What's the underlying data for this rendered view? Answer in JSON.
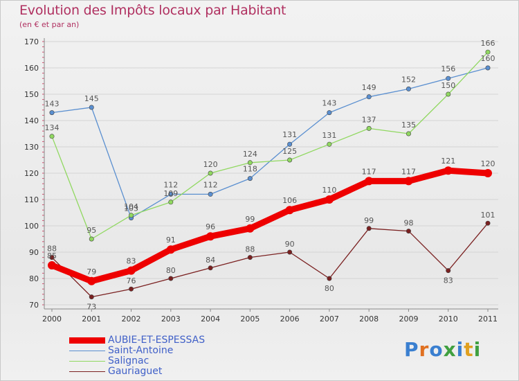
{
  "title": "Evolution des Impôts locaux par Habitant",
  "subtitle": "(en € et par an)",
  "logo_text": "Proxiti",
  "logo_colors": [
    "#3a7fd0",
    "#e07020",
    "#3a7fd0",
    "#40a040",
    "#3a7fd0",
    "#e0a020",
    "#40a040"
  ],
  "chart_data": {
    "type": "line",
    "x": [
      "2000",
      "2001",
      "2002",
      "2003",
      "2004",
      "2005",
      "2006",
      "2007",
      "2008",
      "2009",
      "2010",
      "2011"
    ],
    "ylim": [
      70,
      170
    ],
    "yticks": [
      70,
      80,
      90,
      100,
      110,
      120,
      130,
      140,
      150,
      160,
      170
    ],
    "grid": "horizontal",
    "legend_position": "bottom-left",
    "series": [
      {
        "name": "AUBIE-ET-ESPESSAS",
        "color": "#ee0000",
        "values": [
          85,
          79,
          83,
          91,
          96,
          99,
          106,
          110,
          117,
          117,
          121,
          120
        ]
      },
      {
        "name": "Saint-Antoine",
        "color": "#5a8fd0",
        "values": [
          143,
          145,
          103,
          112,
          112,
          118,
          131,
          143,
          149,
          152,
          156,
          160
        ]
      },
      {
        "name": "Salignac",
        "color": "#90d860",
        "values": [
          134,
          95,
          104,
          109,
          120,
          124,
          125,
          131,
          137,
          135,
          150,
          166
        ]
      },
      {
        "name": "Gauriaguet",
        "color": "#7a2020",
        "values": [
          88,
          73,
          76,
          80,
          84,
          88,
          90,
          80,
          99,
          98,
          83,
          101
        ]
      }
    ]
  }
}
